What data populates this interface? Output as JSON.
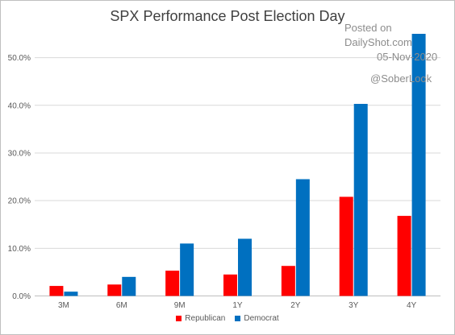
{
  "chart_data": {
    "type": "bar",
    "title": "SPX Performance Post Election Day",
    "categories": [
      "3M",
      "6M",
      "9M",
      "1Y",
      "2Y",
      "3Y",
      "4Y"
    ],
    "series": [
      {
        "name": "Republican",
        "color": "#ff0000",
        "values": [
          2.1,
          2.4,
          5.3,
          4.5,
          6.3,
          20.8,
          16.8
        ]
      },
      {
        "name": "Democrat",
        "color": "#0070c0",
        "values": [
          0.9,
          4.0,
          11.0,
          12.0,
          24.5,
          40.3,
          55.0
        ]
      }
    ],
    "ylim": [
      0,
      55
    ],
    "yticks": [
      0,
      10,
      20,
      30,
      40,
      50
    ],
    "ytick_labels": [
      "0.0%",
      "10.0%",
      "20.0%",
      "30.0%",
      "40.0%",
      "50.0%"
    ],
    "grid": true,
    "legend": "bottom"
  },
  "watermark": {
    "line1": "Posted on",
    "line2": "DailyShot.com",
    "line3": "05-Nov-2020",
    "line4": "@SoberLook"
  }
}
